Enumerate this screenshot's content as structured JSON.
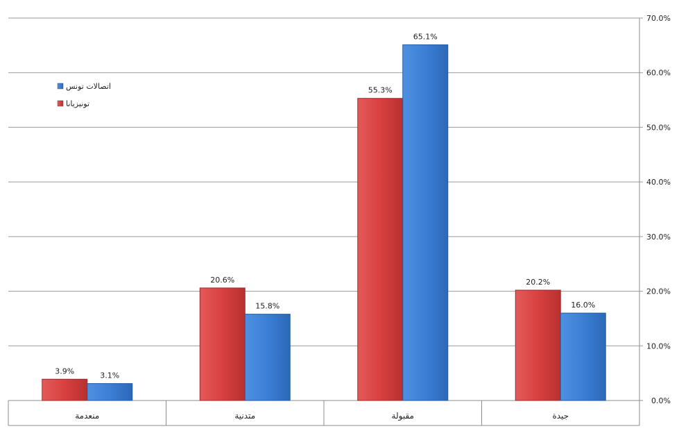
{
  "chart_data": {
    "type": "bar",
    "categories": [
      "منعدمة",
      "متدنية",
      "مقبولة",
      "جيدة"
    ],
    "series": [
      {
        "name": "تونيزيانا",
        "color": "#d94040",
        "values": [
          3.9,
          20.6,
          55.3,
          20.2
        ],
        "labels": [
          "3.9%",
          "20.6%",
          "55.3%",
          "20.2%"
        ]
      },
      {
        "name": "اتصالات تونس",
        "color": "#3b7fd6",
        "values": [
          3.1,
          15.8,
          65.1,
          16.0
        ],
        "labels": [
          "3.1%",
          "15.8%",
          "65.1%",
          "16.0%"
        ]
      }
    ],
    "y_ticks": [
      "0.0%",
      "10.0%",
      "20.0%",
      "30.0%",
      "40.0%",
      "50.0%",
      "60.0%",
      "70.0%"
    ],
    "ylim": [
      0,
      70
    ],
    "y_axis_side": "right",
    "grid": true,
    "legend_position": "top-left",
    "legend_order": [
      "اتصالات تونس",
      "تونيزيانا"
    ]
  }
}
